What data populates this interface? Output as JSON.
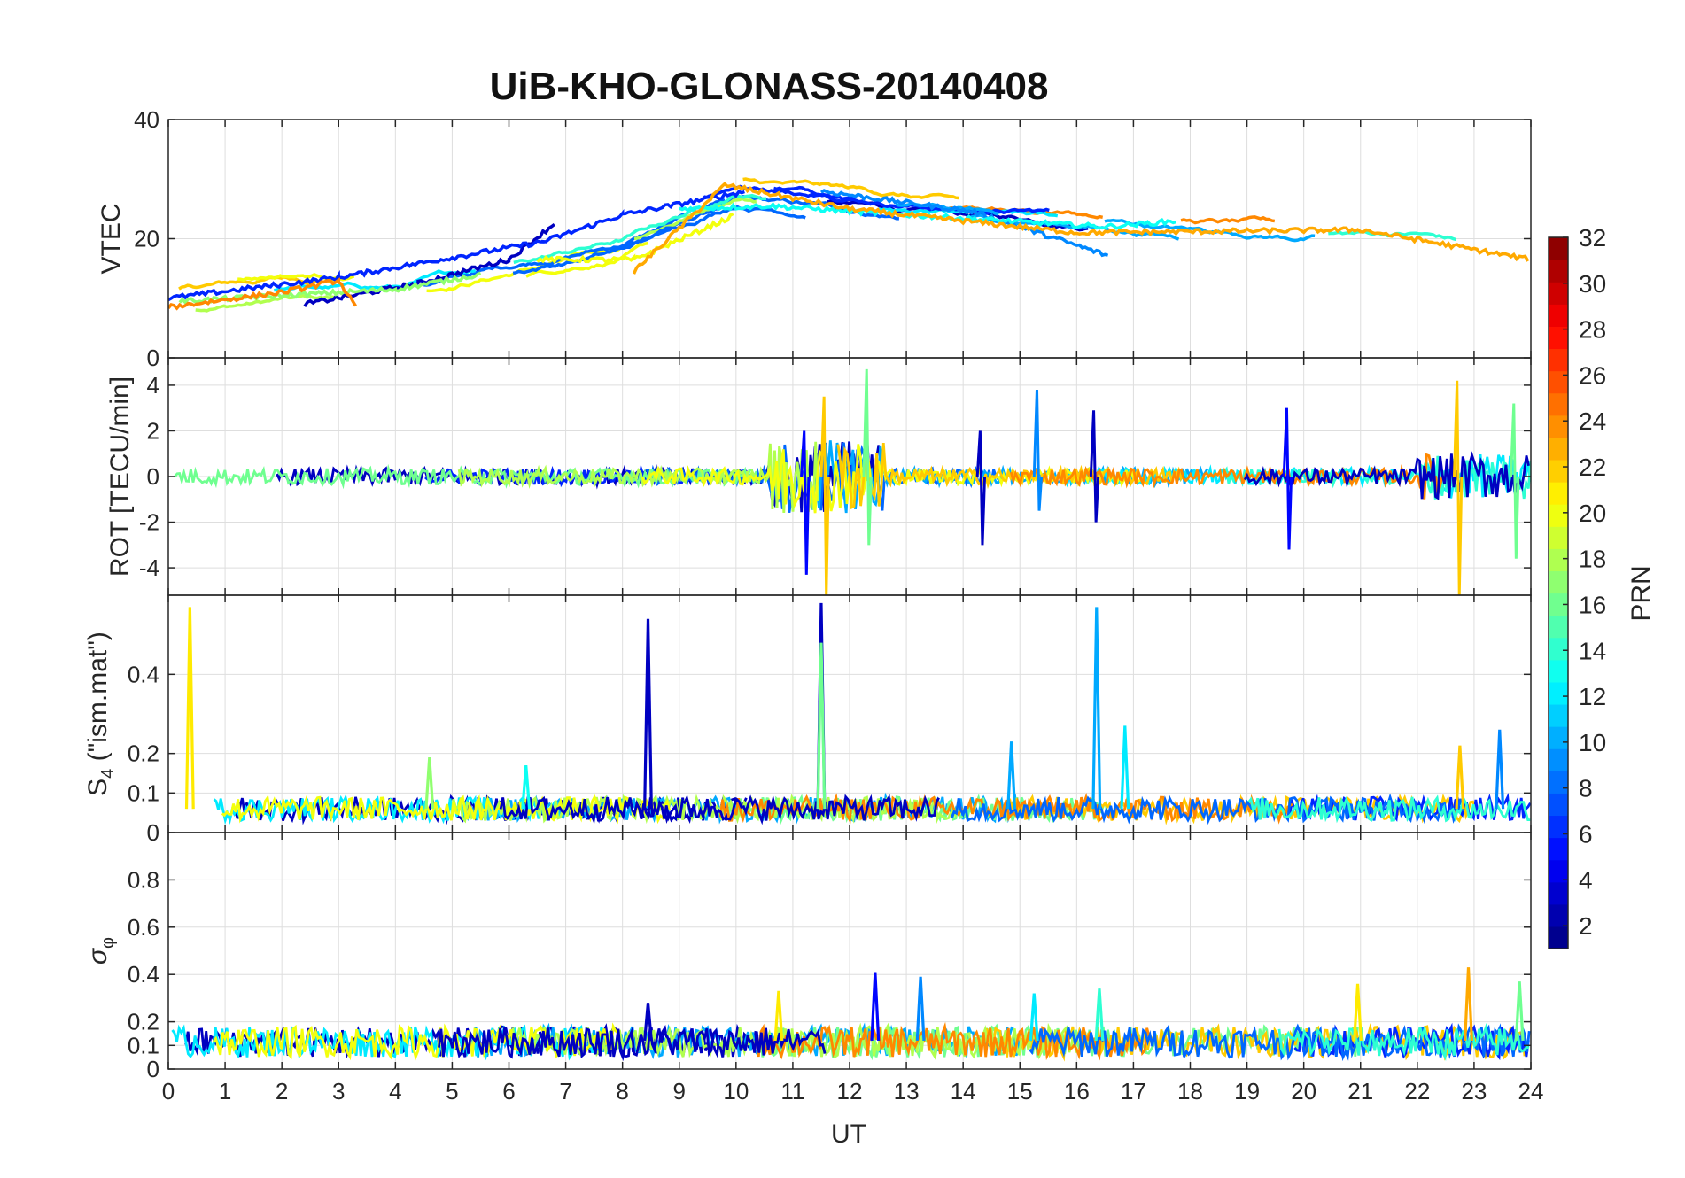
{
  "chart_data": {
    "type": "line",
    "title": "UiB-KHO-GLONASS-20140408",
    "xlabel": "UT",
    "xlim": [
      0,
      24
    ],
    "x_ticks": [
      0,
      1,
      2,
      3,
      4,
      5,
      6,
      7,
      8,
      9,
      10,
      11,
      12,
      13,
      14,
      15,
      16,
      17,
      18,
      19,
      20,
      21,
      22,
      23,
      24
    ],
    "grid": true,
    "colorbar": {
      "label": "PRN",
      "colormap": "jet",
      "range": [
        1,
        32
      ],
      "ticks": [
        2,
        4,
        6,
        8,
        10,
        12,
        14,
        16,
        18,
        20,
        22,
        24,
        26,
        28,
        30,
        32
      ]
    },
    "panels": [
      {
        "id": "vtec",
        "ylabel": "VTEC",
        "ylim": [
          0,
          40
        ],
        "y_ticks": [
          0,
          20,
          40
        ],
        "series_values": "per-PRN smooth curves rising from ~10 TECU at 0 UT to ~28 TECU at 10-12 UT, then ~20-25 TECU afternoon, ~15-20 TECU at 24 UT",
        "profile": [
          [
            0,
            10
          ],
          [
            2,
            12
          ],
          [
            4,
            12
          ],
          [
            6,
            16
          ],
          [
            8,
            20
          ],
          [
            10,
            28
          ],
          [
            12,
            26
          ],
          [
            14,
            24
          ],
          [
            16,
            23
          ],
          [
            18,
            21
          ],
          [
            20,
            20
          ],
          [
            22,
            20
          ],
          [
            24,
            17
          ]
        ],
        "series": [
          {
            "prn": 3,
            "segments": [
              [
                2.4,
                9.0
              ],
              [
                4.4,
                12.5
              ],
              [
                6.0,
                16.5
              ],
              [
                6.8,
                22.5
              ]
            ]
          },
          {
            "prn": 6,
            "segments": [
              [
                0.0,
                10.0
              ],
              [
                3.0,
                13.5
              ],
              [
                6.6,
                19.5
              ],
              [
                8.0,
                24.0
              ],
              [
                10.2,
                28.0
              ]
            ]
          },
          {
            "prn": 9,
            "segments": [
              [
                11.5,
                28.0
              ],
              [
                14.2,
                24.5
              ],
              [
                16.6,
                17.0
              ]
            ]
          },
          {
            "prn": 13,
            "segments": [
              [
                9.0,
                25.0
              ],
              [
                10.6,
                25.5
              ],
              [
                13.0,
                24.0
              ],
              [
                16.5,
                22.0
              ],
              [
                17.8,
                23.0
              ]
            ]
          },
          {
            "prn": 17,
            "segments": [
              [
                0.2,
                9.5
              ],
              [
                4.0,
                11.5
              ],
              [
                5.5,
                14.0
              ]
            ]
          },
          {
            "prn": 20,
            "segments": [
              [
                6.5,
                16.5
              ],
              [
                8.2,
                16.5
              ],
              [
                10.0,
                24.0
              ]
            ]
          },
          {
            "prn": 23,
            "segments": [
              [
                8.2,
                14.5
              ],
              [
                9.8,
                29.0
              ],
              [
                12.0,
                25.0
              ],
              [
                16.0,
                21.0
              ],
              [
                21.0,
                21.5
              ],
              [
                24.0,
                16.5
              ]
            ]
          },
          {
            "prn": 24,
            "segments": [
              [
                0.0,
                8.5
              ],
              [
                2.0,
                11.0
              ],
              [
                3.0,
                13.0
              ],
              [
                3.3,
                8.5
              ]
            ]
          }
        ]
      },
      {
        "id": "rot",
        "ylabel": "ROT [TECU/min]",
        "ylim": [
          -5.2,
          5.2
        ],
        "y_ticks": [
          -4,
          -2,
          0,
          2,
          4
        ],
        "series_values": "noise around 0 TECU/min; strong fluctuations +/-4 around 10.8-12.5 UT and near 22.7 UT",
        "bursts": [
          {
            "ut": 11.2,
            "min": -4.3,
            "max": 2.0
          },
          {
            "ut": 11.55,
            "min": -5.2,
            "max": 3.5
          },
          {
            "ut": 12.3,
            "min": -3.0,
            "max": 4.7
          },
          {
            "ut": 14.3,
            "min": -3.0,
            "max": 2.0
          },
          {
            "ut": 15.3,
            "min": -1.5,
            "max": 3.8
          },
          {
            "ut": 16.3,
            "min": -2.0,
            "max": 2.9
          },
          {
            "ut": 19.7,
            "min": -3.2,
            "max": 3.0
          },
          {
            "ut": 22.7,
            "min": -5.2,
            "max": 4.2
          },
          {
            "ut": 23.7,
            "min": -3.6,
            "max": 3.2
          }
        ]
      },
      {
        "id": "s4",
        "ylabel": "S₄ (\"ism.mat\")",
        "ylabel_main": "S",
        "ylabel_sub": "4",
        "ylabel_rest": " (\"ism.mat\")",
        "ylim": [
          0,
          0.6
        ],
        "y_ticks": [
          0,
          0.1,
          0.2,
          0.4
        ],
        "series_values": "baseline 0.03-0.1 with isolated spikes",
        "spikes": [
          {
            "ut": 0.38,
            "value": 0.57,
            "prn": 21
          },
          {
            "ut": 8.45,
            "value": 0.54,
            "prn": 3
          },
          {
            "ut": 11.5,
            "value": 0.58,
            "prn": 3
          },
          {
            "ut": 11.5,
            "value": 0.48,
            "prn": 16
          },
          {
            "ut": 16.35,
            "value": 0.57,
            "prn": 10
          },
          {
            "ut": 14.85,
            "value": 0.23,
            "prn": 10
          },
          {
            "ut": 6.3,
            "value": 0.17,
            "prn": 13
          },
          {
            "ut": 4.6,
            "value": 0.19,
            "prn": 17
          },
          {
            "ut": 16.85,
            "value": 0.27,
            "prn": 12
          },
          {
            "ut": 23.45,
            "value": 0.26,
            "prn": 9
          },
          {
            "ut": 22.75,
            "value": 0.22,
            "prn": 22
          }
        ]
      },
      {
        "id": "sigma_phi",
        "ylabel": "σφ",
        "ylabel_main": "σ",
        "ylabel_sub": "φ",
        "ylim": [
          0,
          1
        ],
        "y_ticks": [
          0,
          0.1,
          0.2,
          0.4,
          0.6,
          0.8
        ],
        "series_values": "baseline 0.05-0.2 with peaks up to ~0.43 near 22.9 UT",
        "spikes": [
          {
            "ut": 8.45,
            "value": 0.28,
            "prn": 3
          },
          {
            "ut": 10.75,
            "value": 0.33,
            "prn": 21
          },
          {
            "ut": 12.45,
            "value": 0.41,
            "prn": 5
          },
          {
            "ut": 13.25,
            "value": 0.39,
            "prn": 9
          },
          {
            "ut": 15.25,
            "value": 0.32,
            "prn": 12
          },
          {
            "ut": 16.4,
            "value": 0.34,
            "prn": 14
          },
          {
            "ut": 20.95,
            "value": 0.36,
            "prn": 21
          },
          {
            "ut": 22.9,
            "value": 0.43,
            "prn": 23
          },
          {
            "ut": 23.8,
            "value": 0.37,
            "prn": 16
          }
        ]
      }
    ]
  }
}
